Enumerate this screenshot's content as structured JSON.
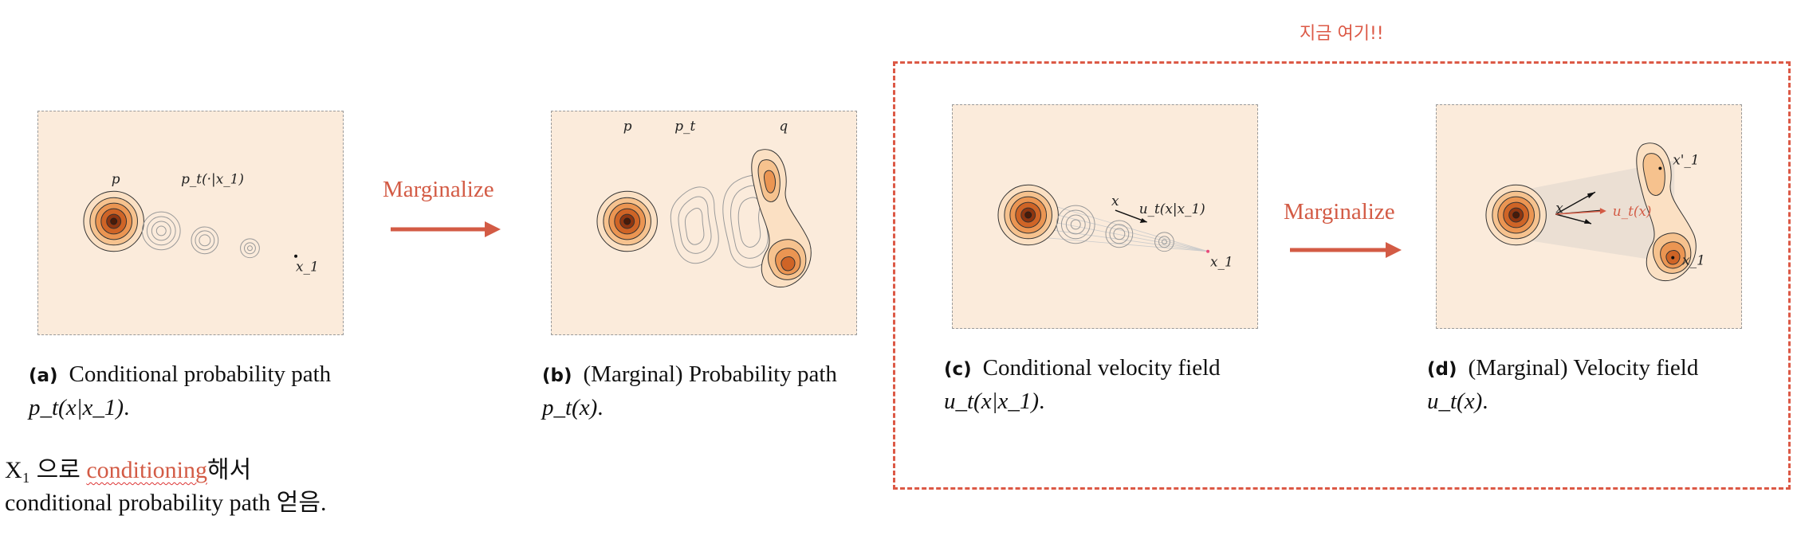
{
  "panels": {
    "a": {
      "tag": "(a)",
      "caption_text": "Conditional probability path",
      "caption_math": "p_t(x|x_1)",
      "label_p": "p",
      "label_pt": "p_t(·|x_1)",
      "label_x1": "x_1"
    },
    "b": {
      "tag": "(b)",
      "caption_text": "(Marginal) Probability path",
      "caption_math": "p_t(x)",
      "label_p": "p",
      "label_pt": "p_t",
      "label_q": "q"
    },
    "c": {
      "tag": "(c)",
      "caption_text": "Conditional velocity field",
      "caption_math": "u_t(x|x_1)",
      "label_x": "x",
      "label_u": "u_t(x|x_1)",
      "label_x1": "x_1"
    },
    "d": {
      "tag": "(d)",
      "caption_text": "(Marginal) Velocity field",
      "caption_math": "u_t(x)",
      "label_x": "x",
      "label_u": "u_t(x)",
      "label_x1p": "x'_1",
      "label_x1": "x_1"
    }
  },
  "arrows": {
    "left_label": "Marginalize",
    "right_label": "Marginalize"
  },
  "highlight_box": {
    "label": "지금 여기!!"
  },
  "note": {
    "line1_prefix": "X₁ 으로 ",
    "line1_red": "conditioning",
    "line1_suffix": "해서",
    "line2": "conditional probability path 얻음."
  },
  "colors": {
    "accent": "#dc5946",
    "panel_bg": "#fbebdb",
    "contour_dark": "#4a1a08",
    "contour_mid": "#e07a35",
    "contour_light": "#f6c894"
  }
}
